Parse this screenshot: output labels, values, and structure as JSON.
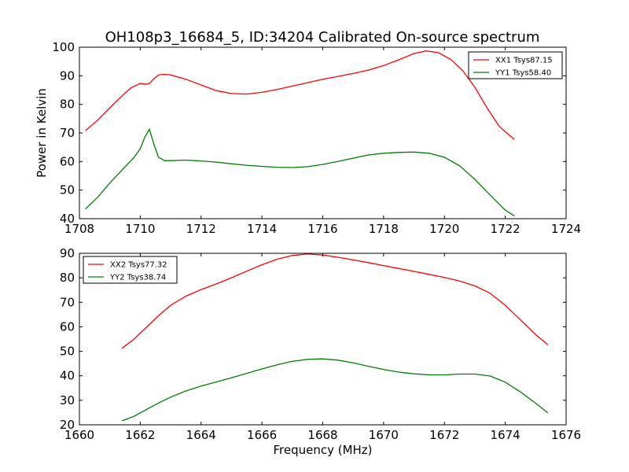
{
  "figure": {
    "title": "OH108p3_16684_5, ID:34204 Calibrated On-source spectrum"
  },
  "chart_data": [
    {
      "type": "line",
      "title": "OH108p3_16684_5, ID:34204 Calibrated On-source spectrum",
      "xlabel": "",
      "ylabel": "Power in Kelvin",
      "xlim": [
        1708,
        1724
      ],
      "ylim": [
        40,
        100
      ],
      "xticks": [
        1708,
        1710,
        1712,
        1714,
        1716,
        1718,
        1720,
        1722,
        1724
      ],
      "yticks": [
        40,
        50,
        60,
        70,
        80,
        90,
        100
      ],
      "grid": false,
      "legend_position": "top-right",
      "series": [
        {
          "name": "XX1 Tsys87.15",
          "color": "#ff0000",
          "x": [
            1708.2,
            1708.6,
            1709.0,
            1709.4,
            1709.7,
            1710.0,
            1710.2,
            1710.3,
            1710.45,
            1710.6,
            1710.8,
            1711.0,
            1711.5,
            1712.0,
            1712.5,
            1713.0,
            1713.5,
            1714.0,
            1714.5,
            1715.0,
            1715.5,
            1716.0,
            1716.5,
            1717.0,
            1717.5,
            1718.0,
            1718.5,
            1719.0,
            1719.4,
            1719.8,
            1720.2,
            1720.6,
            1721.0,
            1721.4,
            1721.8,
            1722.3
          ],
          "y": [
            70.8,
            74.5,
            78.8,
            83.0,
            85.8,
            87.3,
            87.0,
            87.3,
            89.0,
            90.3,
            90.5,
            90.3,
            88.8,
            86.8,
            84.8,
            83.8,
            83.6,
            84.2,
            85.2,
            86.4,
            87.6,
            88.8,
            89.8,
            90.8,
            92.0,
            93.6,
            95.6,
            97.8,
            98.7,
            98.1,
            95.8,
            91.8,
            86.0,
            78.8,
            72.3,
            67.7
          ]
        },
        {
          "name": "YY1 Tsys58.40",
          "color": "#008000",
          "x": [
            1708.2,
            1708.6,
            1709.0,
            1709.4,
            1709.8,
            1710.0,
            1710.15,
            1710.3,
            1710.45,
            1710.6,
            1710.8,
            1711.0,
            1711.5,
            1712.0,
            1712.5,
            1713.0,
            1713.5,
            1714.0,
            1714.5,
            1715.0,
            1715.5,
            1716.0,
            1716.5,
            1717.0,
            1717.5,
            1718.0,
            1718.5,
            1719.0,
            1719.5,
            1720.0,
            1720.5,
            1721.0,
            1721.5,
            1722.0,
            1722.3
          ],
          "y": [
            43.4,
            47.5,
            52.5,
            57.0,
            61.5,
            64.5,
            68.5,
            71.3,
            66.0,
            61.5,
            60.3,
            60.3,
            60.5,
            60.2,
            59.8,
            59.2,
            58.7,
            58.3,
            58.0,
            57.9,
            58.2,
            59.0,
            60.0,
            61.2,
            62.3,
            62.9,
            63.2,
            63.3,
            62.9,
            61.5,
            58.5,
            53.8,
            48.3,
            43.0,
            41.0
          ]
        }
      ]
    },
    {
      "type": "line",
      "title": "",
      "xlabel": "Frequency (MHz)",
      "ylabel": "",
      "xlim": [
        1660,
        1676
      ],
      "ylim": [
        20,
        90
      ],
      "xticks": [
        1660,
        1662,
        1664,
        1666,
        1668,
        1670,
        1672,
        1674,
        1676
      ],
      "yticks": [
        20,
        30,
        40,
        50,
        60,
        70,
        80,
        90
      ],
      "grid": false,
      "legend_position": "top-left",
      "series": [
        {
          "name": "XX2 Tsys77.32",
          "color": "#ff0000",
          "x": [
            1661.4,
            1661.8,
            1662.2,
            1662.6,
            1663.0,
            1663.5,
            1664.0,
            1664.5,
            1665.0,
            1665.5,
            1666.0,
            1666.5,
            1667.0,
            1667.5,
            1668.0,
            1668.5,
            1669.0,
            1669.5,
            1670.0,
            1670.5,
            1671.0,
            1671.5,
            1672.0,
            1672.5,
            1673.0,
            1673.5,
            1674.0,
            1674.5,
            1675.0,
            1675.4
          ],
          "y": [
            51.2,
            55.0,
            59.8,
            64.5,
            68.8,
            72.5,
            75.2,
            77.5,
            80.0,
            82.7,
            85.3,
            87.6,
            89.1,
            89.7,
            89.3,
            88.4,
            87.3,
            86.2,
            85.0,
            83.8,
            82.6,
            81.4,
            80.1,
            78.7,
            76.7,
            73.7,
            68.8,
            62.8,
            56.8,
            52.7
          ]
        },
        {
          "name": "YY2 Tsys38.74",
          "color": "#008000",
          "x": [
            1661.4,
            1661.8,
            1662.2,
            1662.6,
            1663.0,
            1663.5,
            1664.0,
            1664.5,
            1665.0,
            1665.5,
            1666.0,
            1666.5,
            1667.0,
            1667.5,
            1668.0,
            1668.5,
            1669.0,
            1669.5,
            1670.0,
            1670.5,
            1671.0,
            1671.5,
            1672.0,
            1672.5,
            1673.0,
            1673.5,
            1674.0,
            1674.5,
            1675.0,
            1675.4
          ],
          "y": [
            21.6,
            23.5,
            26.2,
            28.9,
            31.3,
            33.8,
            35.8,
            37.5,
            39.2,
            41.0,
            42.8,
            44.5,
            45.9,
            46.7,
            46.9,
            46.4,
            45.3,
            43.9,
            42.6,
            41.5,
            40.8,
            40.4,
            40.4,
            40.7,
            40.7,
            39.9,
            37.4,
            33.4,
            28.8,
            24.9
          ]
        }
      ]
    }
  ]
}
